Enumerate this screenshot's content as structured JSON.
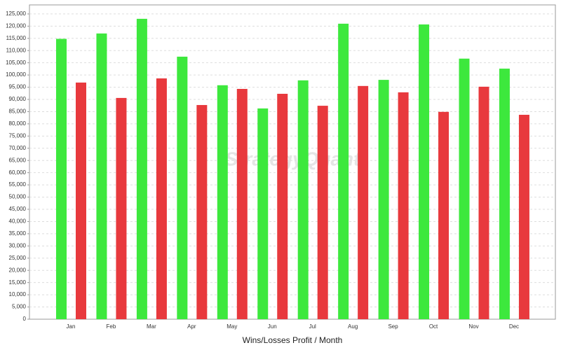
{
  "chart_data": {
    "type": "bar",
    "watermark": "StrategyQuant",
    "xlabel": "Wins/Losses Profit / Month",
    "categories": [
      "Jan",
      "Feb",
      "Mar",
      "Apr",
      "May",
      "Jun",
      "Jul",
      "Aug",
      "Sep",
      "Oct",
      "Nov",
      "Dec"
    ],
    "series": [
      {
        "color": "#3de83d",
        "values": [
          114800,
          117000,
          123000,
          107500,
          95800,
          86300,
          97800,
          121000,
          98000,
          120700,
          106700,
          102600
        ]
      },
      {
        "color": "#e8393d",
        "values": [
          96900,
          90600,
          98600,
          87700,
          94300,
          92300,
          87400,
          95500,
          92900,
          84900,
          95200,
          83700
        ]
      }
    ],
    "ylim": [
      0,
      128700
    ],
    "yticks": [
      0,
      {
        "value": 5000,
        "label": "5,000"
      },
      {
        "value": 10000,
        "label": "10,000"
      },
      {
        "value": 15000,
        "label": "15,000"
      },
      {
        "value": 20000,
        "label": "20,000"
      },
      {
        "value": 25000,
        "label": "25,000"
      },
      {
        "value": 30000,
        "label": "30,000"
      },
      {
        "value": 35000,
        "label": "35,000"
      },
      {
        "value": 40000,
        "label": "40,000"
      },
      {
        "value": 45000,
        "label": "45,000"
      },
      {
        "value": 50000,
        "label": "50,000"
      },
      {
        "value": 55000,
        "label": "55,000"
      },
      {
        "value": 60000,
        "label": "60,000"
      },
      {
        "value": 65000,
        "label": "65,000"
      },
      {
        "value": 70000,
        "label": "70,000"
      },
      {
        "value": 75000,
        "label": "75,000"
      },
      {
        "value": 80000,
        "label": "80,000"
      },
      {
        "value": 85000,
        "label": "85,000"
      },
      {
        "value": 90000,
        "label": "90,000"
      },
      {
        "value": 95000,
        "label": "95,000"
      },
      {
        "value": 100000,
        "label": "100,000"
      },
      {
        "value": 105000,
        "label": "105,000"
      },
      {
        "value": 110000,
        "label": "110,000"
      },
      {
        "value": 115000,
        "label": "115,000"
      },
      {
        "value": 120000,
        "label": "120,000"
      },
      {
        "value": 125000,
        "label": "125,000"
      }
    ],
    "grid": true
  }
}
